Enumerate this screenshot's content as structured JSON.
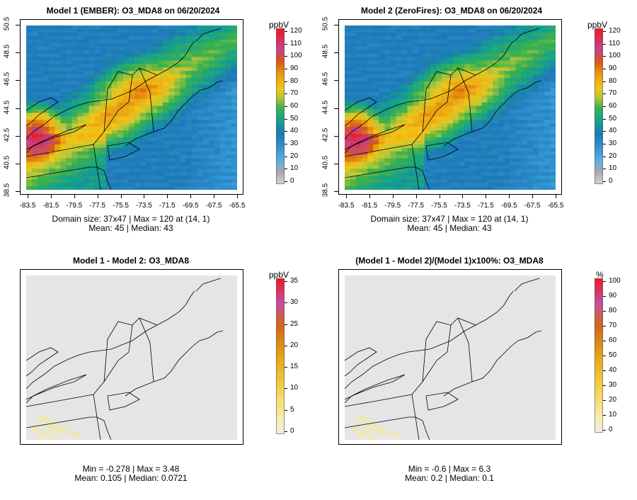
{
  "panels": [
    {
      "title": "Model 1 (EMBER): O3_MDA8 on 06/20/2024",
      "unit": "ppbV",
      "scale": "conc",
      "colorbar_labels": [
        "120",
        "110",
        "100",
        "90",
        "80",
        "70",
        "60",
        "50",
        "40",
        "30",
        "20",
        "10",
        "0"
      ],
      "y_ticks": [
        "50.5",
        "48.5",
        "46.5",
        "44.5",
        "42.5",
        "40.5",
        "38.5"
      ],
      "x_ticks": [
        "-83.5",
        "-81.5",
        "-79.5",
        "-77.5",
        "-75.5",
        "-73.5",
        "-71.5",
        "-69.5",
        "-67.5",
        "-65.5"
      ],
      "stat_line1": "Domain size: 37x47 | Max = 120 at (14, 1)",
      "stat_line2": "Mean: 45 |  Median: 43"
    },
    {
      "title": "Model 2 (ZeroFires): O3_MDA8 on 06/20/2024",
      "unit": "ppbV",
      "scale": "conc",
      "colorbar_labels": [
        "120",
        "110",
        "100",
        "90",
        "80",
        "70",
        "60",
        "50",
        "40",
        "30",
        "20",
        "10",
        "0"
      ],
      "y_ticks": [
        "50.5",
        "48.5",
        "46.5",
        "44.5",
        "42.5",
        "40.5",
        "38.5"
      ],
      "x_ticks": [
        "-83.5",
        "-81.5",
        "-79.5",
        "-77.5",
        "-75.5",
        "-73.5",
        "-71.5",
        "-69.5",
        "-67.5",
        "-65.5"
      ],
      "stat_line1": "Domain size: 37x47 | Max = 120 at (14, 1)",
      "stat_line2": "Mean: 45 |  Median: 43"
    },
    {
      "title": "Model 1 - Model 2: O3_MDA8",
      "unit": "ppbV",
      "scale": "diff",
      "colorbar_labels": [
        "35",
        "30",
        "25",
        "20",
        "15",
        "10",
        "5",
        "0"
      ],
      "stat_line1": "Min = -0.278 | Max = 3.48",
      "stat_line2": "Mean: 0.105 |  Median: 0.0721"
    },
    {
      "title": "(Model 1 - Model 2)/(Model 1)x100%: O3_MDA8",
      "unit": "%",
      "scale": "pct",
      "colorbar_labels": [
        "100",
        "90",
        "80",
        "70",
        "60",
        "50",
        "40",
        "30",
        "20",
        "10",
        "0"
      ],
      "stat_line1": "Min = -0.6 | Max = 6.3",
      "stat_line2": "Mean: 0.2 |  Median: 0.1"
    }
  ],
  "colors": {
    "ocean": "#2e82c4",
    "diff_background": "#e5e5e5",
    "diff_light": "#f0e8b0"
  }
}
